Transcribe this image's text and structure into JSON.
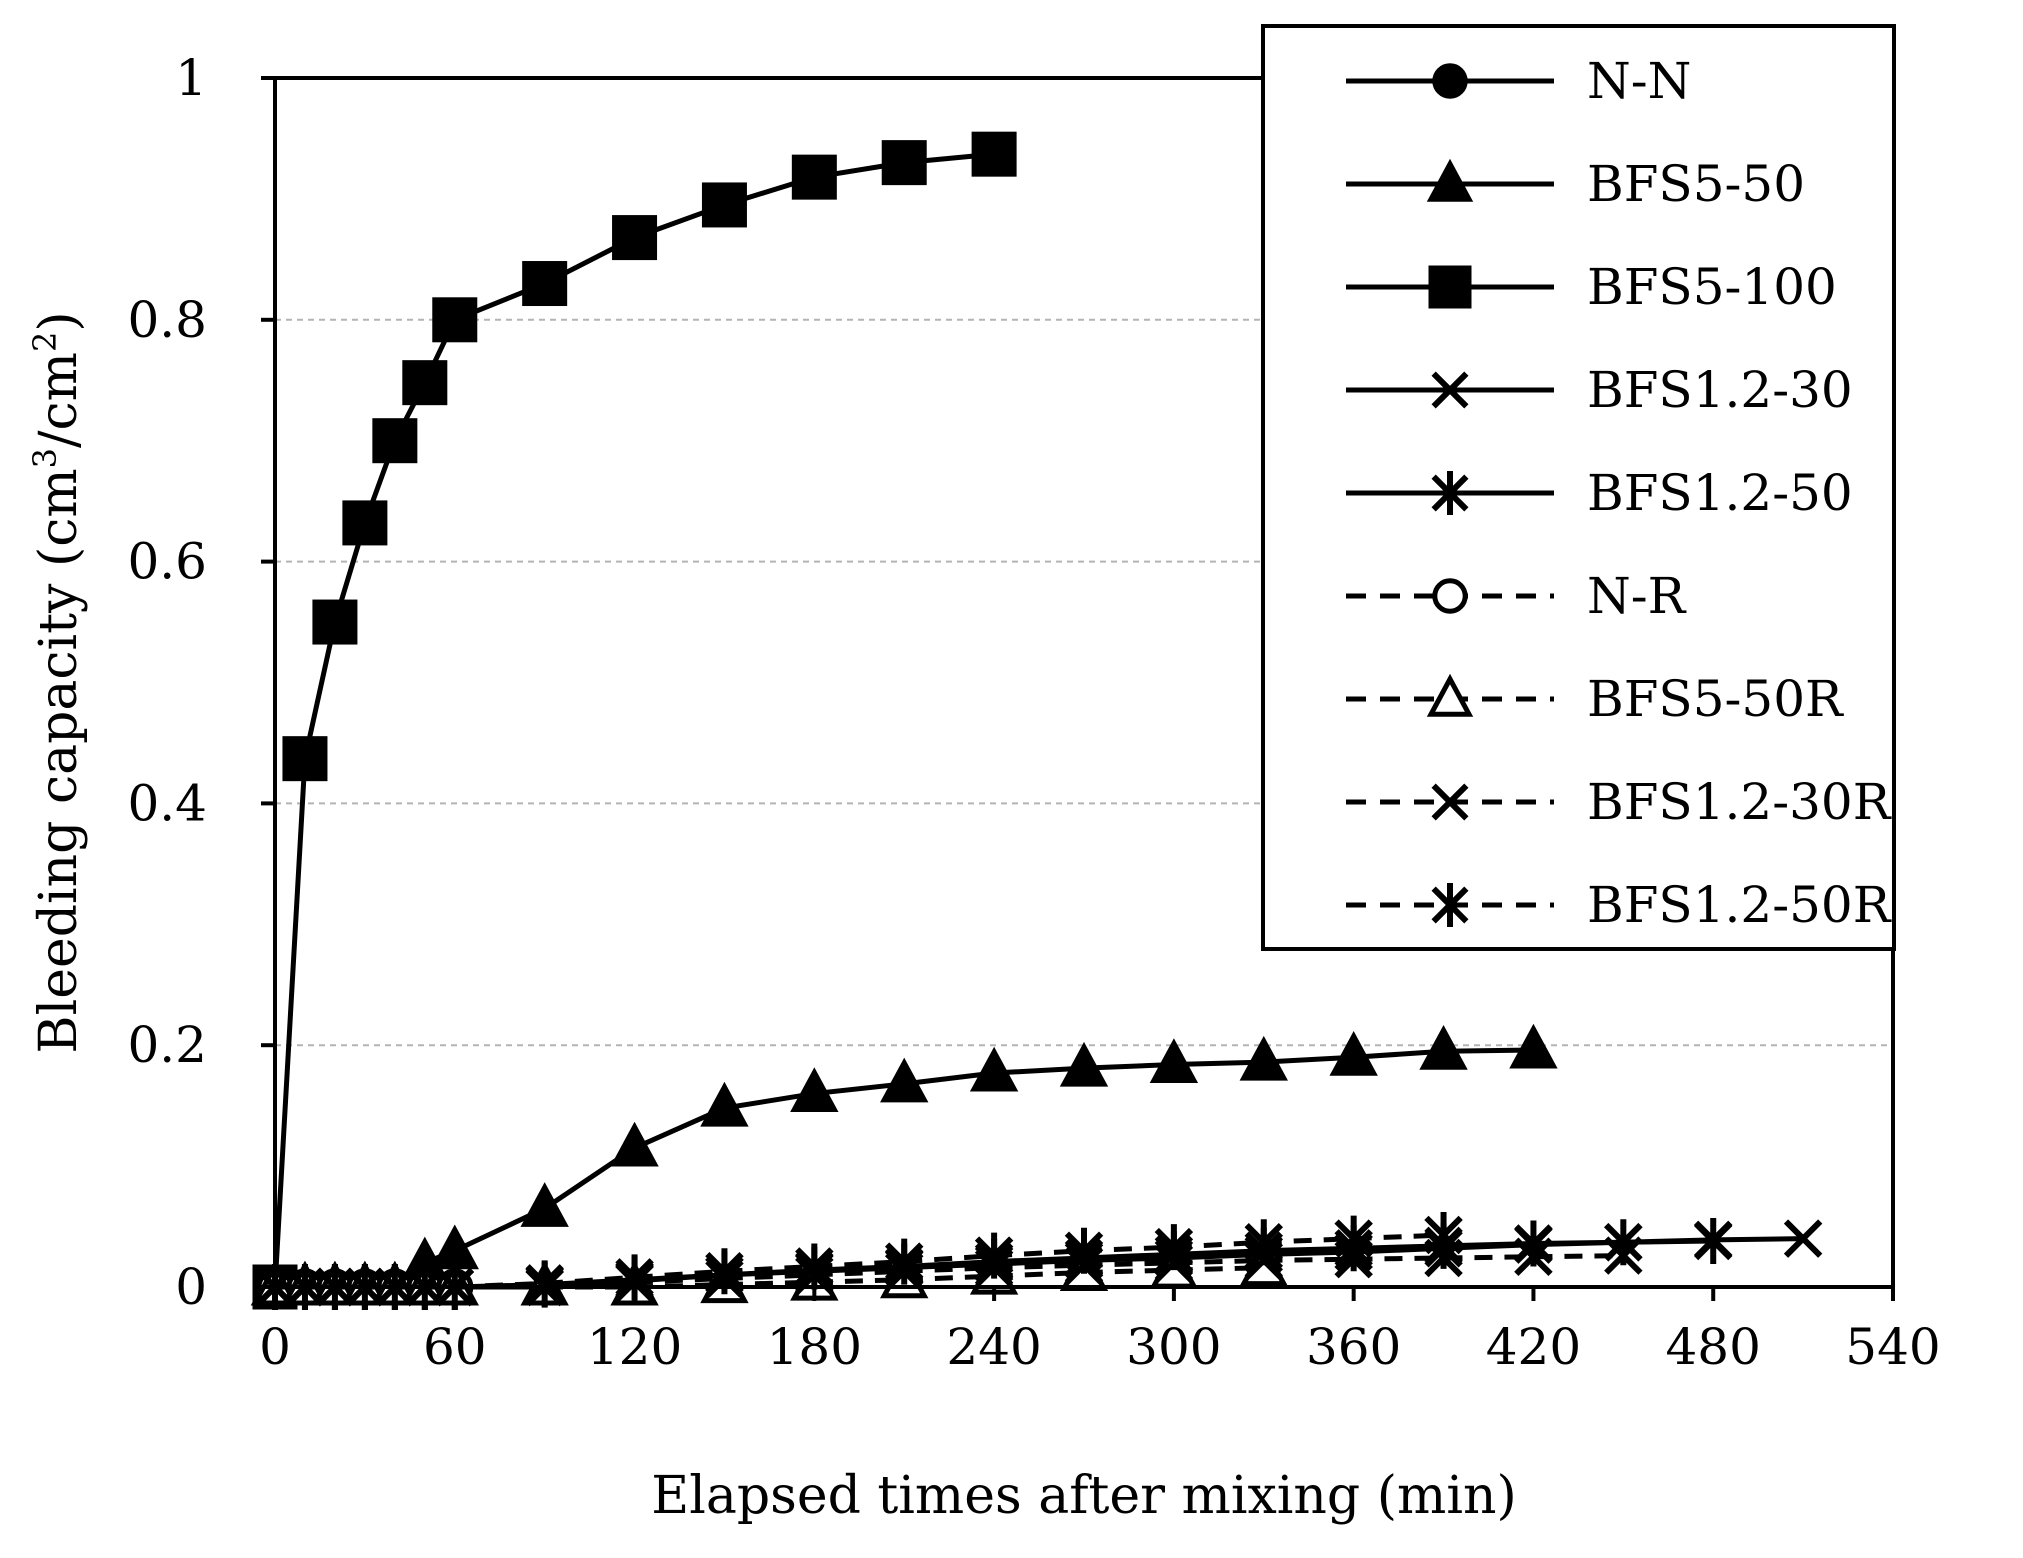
{
  "chart_data": {
    "type": "line",
    "title": "",
    "xlabel": "Elapsed times after mixing (min)",
    "ylabel_main": "Bleeding capacity (cm",
    "ylabel_sup1": "3",
    "ylabel_mid": "/cm",
    "ylabel_sup2": "2",
    "ylabel_end": ")",
    "xlim": [
      0,
      540
    ],
    "ylim": [
      0,
      1
    ],
    "xticks": [
      0,
      60,
      120,
      180,
      240,
      300,
      360,
      420,
      480,
      540
    ],
    "xtick_labels": [
      "0",
      "60",
      "120",
      "180",
      "240",
      "300",
      "360",
      "420",
      "480",
      "540"
    ],
    "yticks": [
      0,
      0.2,
      0.4,
      0.6,
      0.8,
      1
    ],
    "ytick_labels": [
      "0",
      "0.2",
      "0.4",
      "0.6",
      "0.8",
      "1"
    ],
    "grid": "horizontal dashed",
    "legend_position": "top-right",
    "series": [
      {
        "name": "N-N",
        "marker": "circle",
        "filled": true,
        "dashed": false,
        "x": [
          0,
          10,
          20,
          30,
          40,
          50,
          60
        ],
        "y": [
          0,
          0,
          0,
          0,
          0,
          0,
          0
        ]
      },
      {
        "name": "BFS5-50",
        "marker": "triangle",
        "filled": true,
        "dashed": false,
        "x": [
          0,
          10,
          20,
          30,
          40,
          50,
          60,
          90,
          120,
          150,
          180,
          210,
          240,
          270,
          300,
          330,
          360,
          390,
          420
        ],
        "y": [
          0,
          0,
          0,
          0,
          0,
          0.02,
          0.03,
          0.065,
          0.115,
          0.148,
          0.16,
          0.168,
          0.177,
          0.181,
          0.184,
          0.186,
          0.19,
          0.195,
          0.196
        ]
      },
      {
        "name": "BFS5-100",
        "marker": "square",
        "filled": true,
        "dashed": false,
        "x": [
          0,
          10,
          20,
          30,
          40,
          50,
          60,
          90,
          120,
          150,
          180,
          210,
          240
        ],
        "y": [
          0,
          0.437,
          0.55,
          0.632,
          0.7,
          0.748,
          0.8,
          0.83,
          0.868,
          0.895,
          0.918,
          0.93,
          0.937
        ]
      },
      {
        "name": "BFS1.2-30",
        "marker": "x",
        "filled": false,
        "dashed": false,
        "x": [
          0,
          10,
          20,
          30,
          40,
          50,
          60,
          90,
          120,
          150,
          180,
          210,
          240,
          270,
          300,
          330,
          360,
          390,
          420,
          450,
          480,
          510
        ],
        "y": [
          0,
          0,
          0,
          0,
          0,
          0,
          0,
          0,
          0.005,
          0.01,
          0.013,
          0.016,
          0.019,
          0.022,
          0.024,
          0.027,
          0.029,
          0.032,
          0.035,
          0.037,
          0.039,
          0.04
        ]
      },
      {
        "name": "BFS1.2-50",
        "marker": "asterisk",
        "filled": false,
        "dashed": false,
        "x": [
          0,
          10,
          20,
          30,
          40,
          50,
          60,
          90,
          120,
          150,
          180,
          210,
          240,
          270,
          300,
          330,
          360,
          390,
          420,
          450,
          480
        ],
        "y": [
          0,
          0,
          0,
          0,
          0,
          0,
          0,
          0.002,
          0.006,
          0.01,
          0.014,
          0.017,
          0.021,
          0.024,
          0.027,
          0.03,
          0.032,
          0.034,
          0.036,
          0.037,
          0.038
        ]
      },
      {
        "name": "N-R",
        "marker": "circle",
        "filled": false,
        "dashed": true,
        "x": [
          0,
          10,
          20,
          30,
          40,
          50,
          60
        ],
        "y": [
          0,
          0,
          0,
          0,
          0,
          0,
          0
        ]
      },
      {
        "name": "BFS5-50R",
        "marker": "triangle",
        "filled": false,
        "dashed": true,
        "x": [
          0,
          10,
          20,
          30,
          40,
          50,
          60,
          90,
          120,
          150,
          180,
          210,
          240,
          270,
          300,
          330
        ],
        "y": [
          0,
          0,
          0,
          0,
          0,
          0,
          0,
          0,
          0,
          0.002,
          0.004,
          0.006,
          0.009,
          0.012,
          0.014,
          0.016
        ]
      },
      {
        "name": "BFS1.2-30R",
        "marker": "x",
        "filled": false,
        "dashed": true,
        "x": [
          0,
          10,
          20,
          30,
          40,
          50,
          60,
          90,
          120,
          150,
          180,
          210,
          240,
          270,
          300,
          330,
          360,
          390,
          420,
          450
        ],
        "y": [
          0,
          0,
          0,
          0,
          0,
          0,
          0,
          0,
          0.004,
          0.007,
          0.01,
          0.013,
          0.016,
          0.018,
          0.02,
          0.022,
          0.023,
          0.024,
          0.025,
          0.026
        ]
      },
      {
        "name": "BFS1.2-50R",
        "marker": "asterisk",
        "filled": false,
        "dashed": true,
        "x": [
          0,
          10,
          20,
          30,
          40,
          50,
          60,
          90,
          120,
          150,
          180,
          210,
          240,
          270,
          300,
          330,
          360,
          390
        ],
        "y": [
          0,
          0,
          0,
          0,
          0,
          0,
          0,
          0.003,
          0.008,
          0.013,
          0.017,
          0.021,
          0.026,
          0.03,
          0.033,
          0.037,
          0.04,
          0.043
        ]
      }
    ]
  }
}
